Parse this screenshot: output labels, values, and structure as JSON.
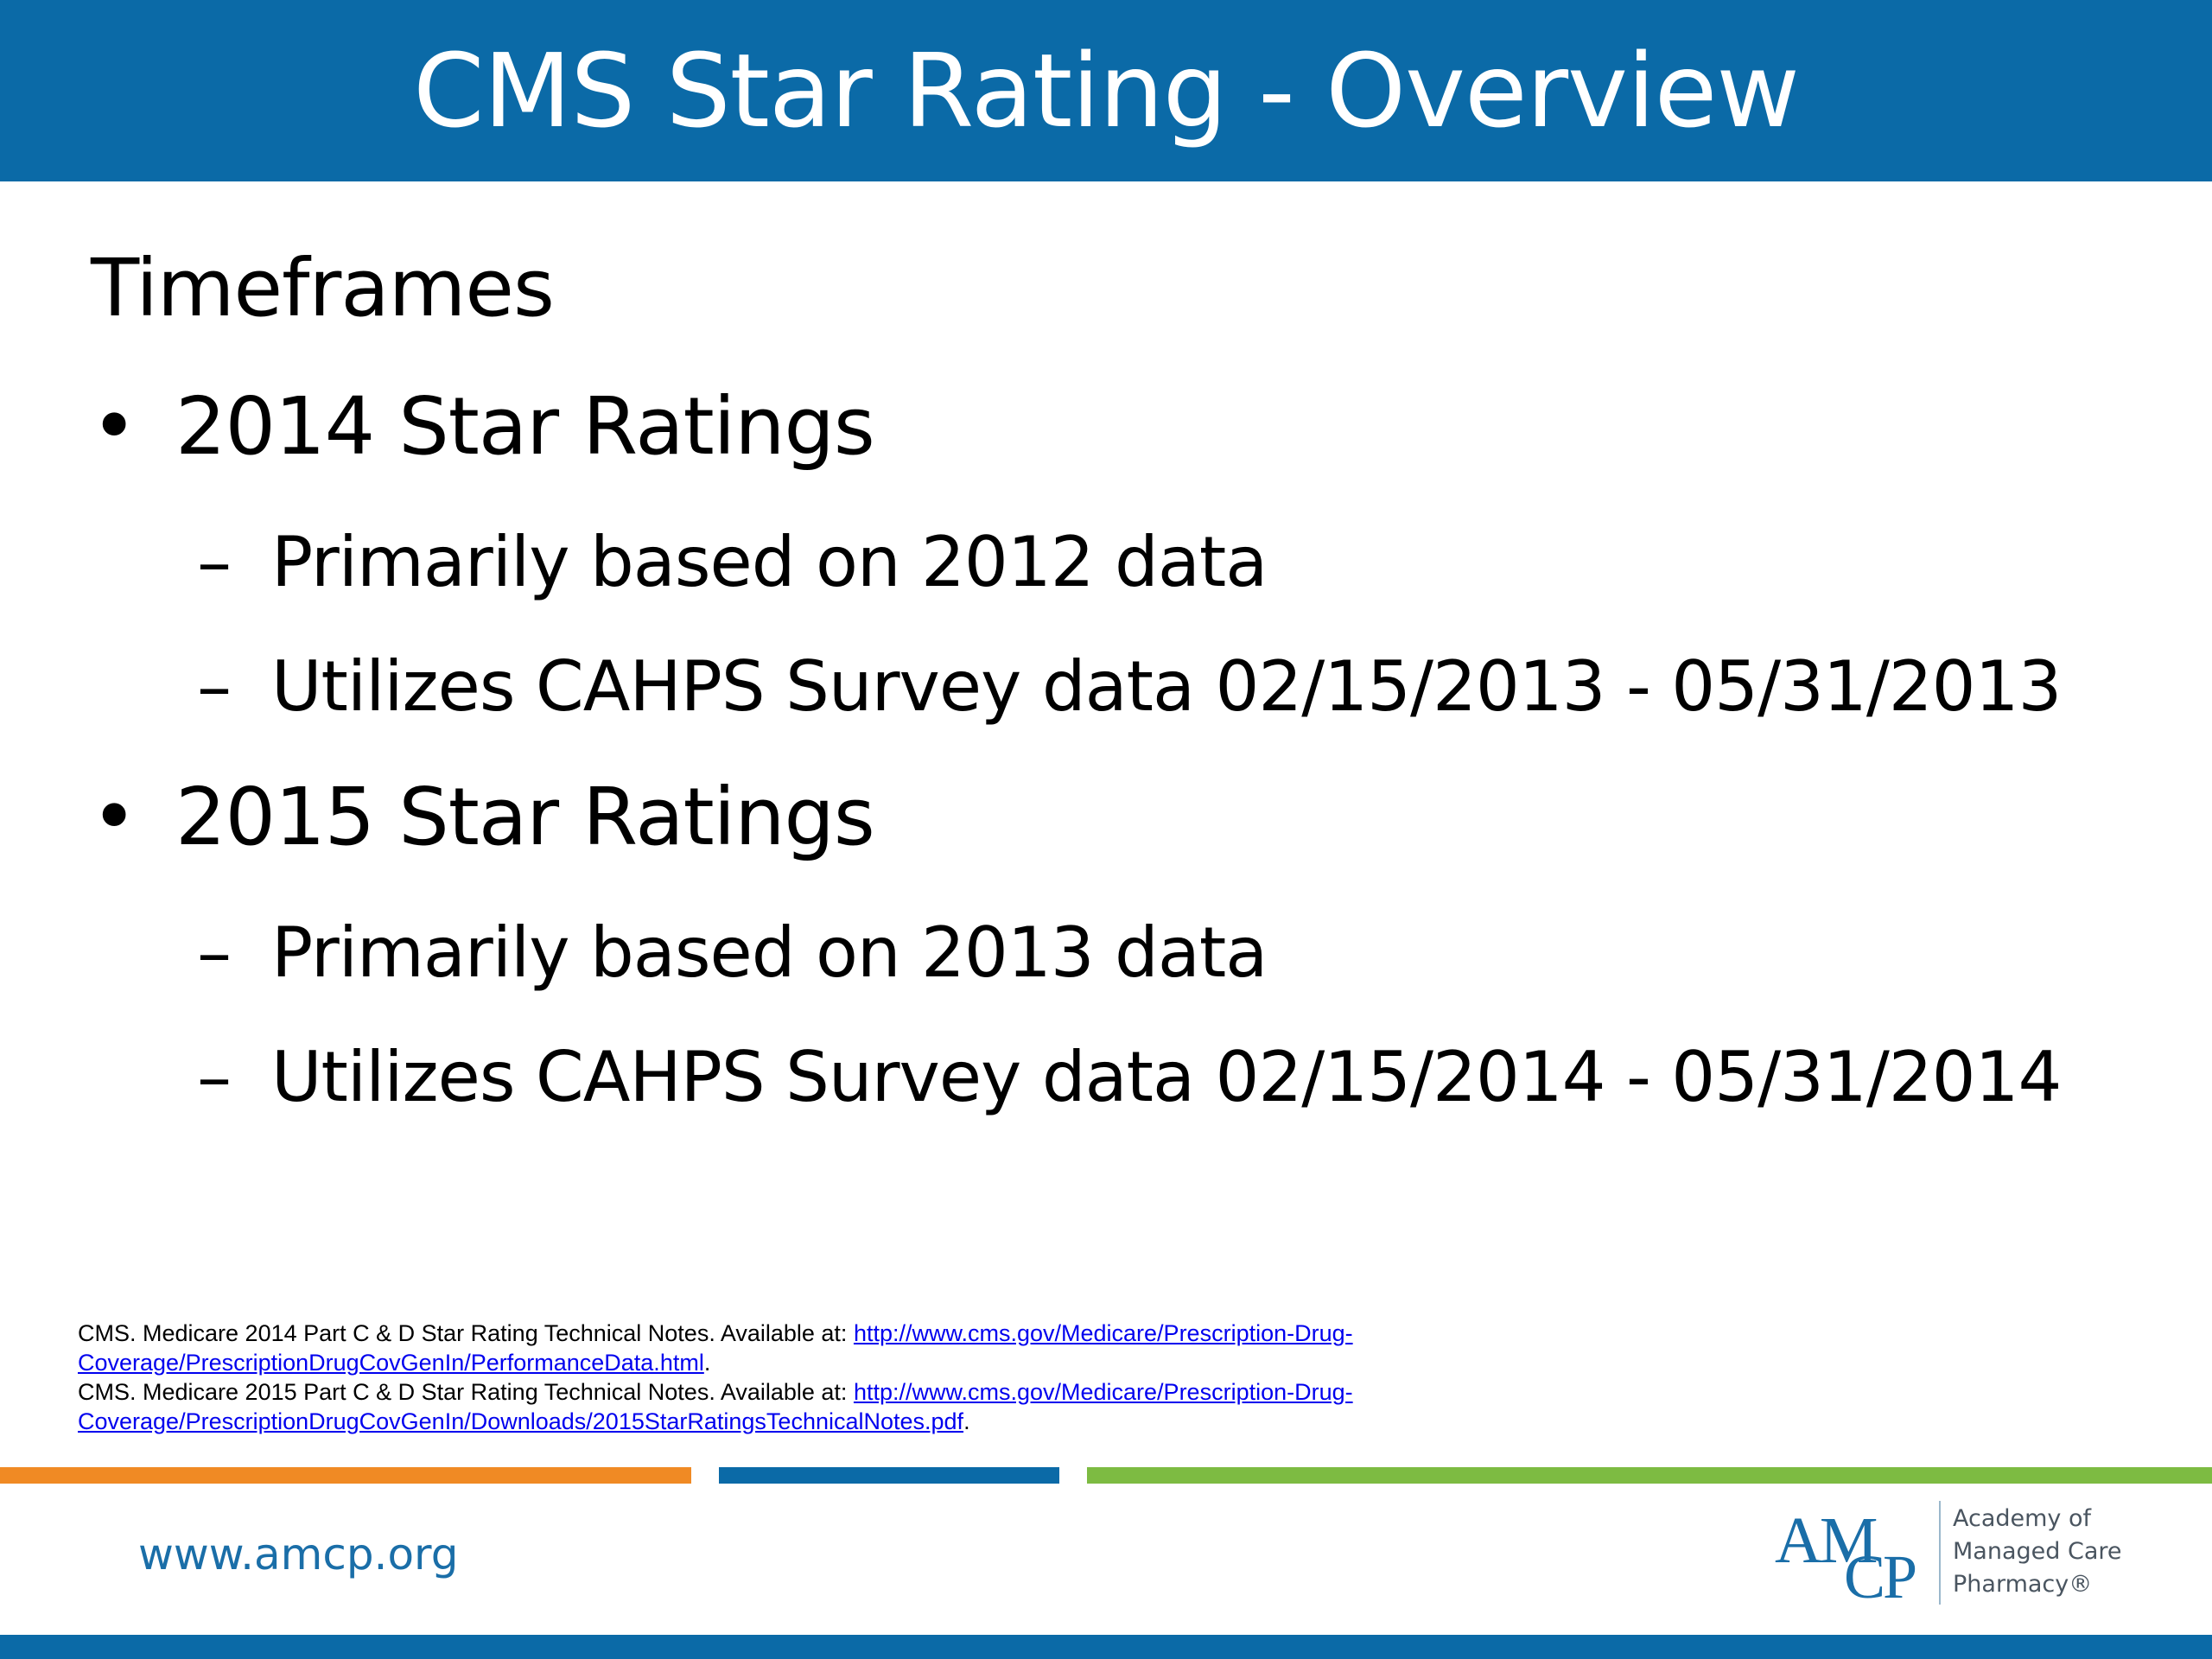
{
  "header": {
    "title": "CMS Star Rating - Overview"
  },
  "content": {
    "heading": "Timeframes",
    "bullet_symbol": "•",
    "dash_symbol": "–",
    "bullets": [
      {
        "label": "2014 Star Ratings",
        "subs": [
          "Primarily based on 2012 data",
          "Utilizes CAHPS Survey data 02/15/2013 - 05/31/2013"
        ]
      },
      {
        "label": "2015 Star Ratings",
        "subs": [
          "Primarily based on 2013 data",
          "Utilizes CAHPS Survey data 02/15/2014 - 05/31/2014"
        ]
      }
    ]
  },
  "references": [
    {
      "text": "CMS.  Medicare 2014 Part C & D Star Rating Technical Notes. Available at: ",
      "link": "http://www.cms.gov/Medicare/Prescription-Drug-Coverage/PrescriptionDrugCovGenIn/PerformanceData.html",
      "after": "."
    },
    {
      "text": "CMS.  Medicare 2015 Part C & D Star Rating Technical Notes. Available at: ",
      "link": "http://www.cms.gov/Medicare/Prescription-Drug-Coverage/PrescriptionDrugCovGenIn/Downloads/2015StarRatingsTechnicalNotes.pdf",
      "after": "."
    }
  ],
  "footer": {
    "website": "www.amcp.org",
    "logo": {
      "mark_top": "AM",
      "mark_bottom": "CP",
      "line1": "Academy of",
      "line2": "Managed Care",
      "line3": "Pharmacy®"
    }
  },
  "colors": {
    "header_blue": "#0b6aa7",
    "stripe_orange": "#f08a24",
    "stripe_blue": "#0b6aa7",
    "stripe_green": "#7dbb42",
    "link_blue": "#0000ee"
  }
}
